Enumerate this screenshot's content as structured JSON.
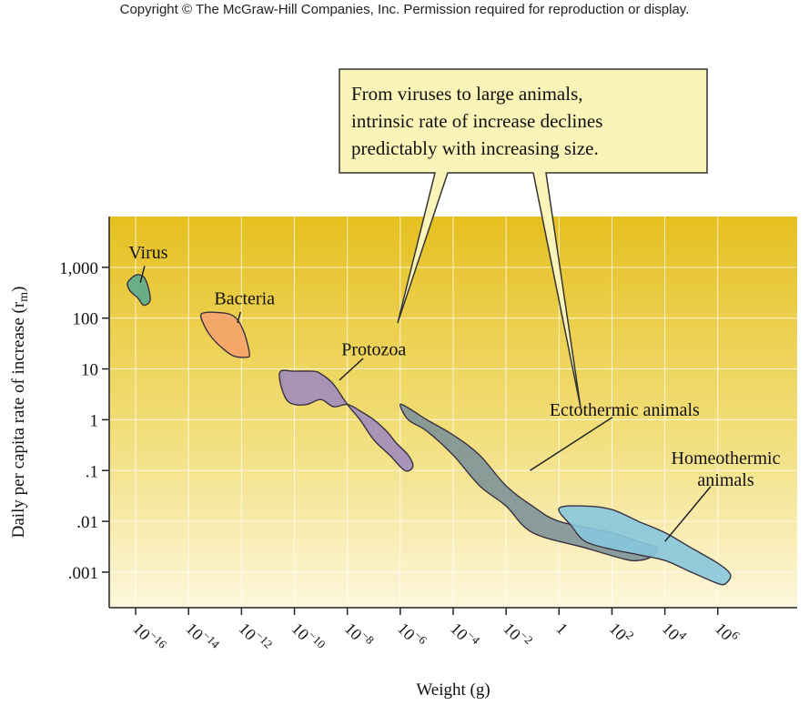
{
  "header": {
    "copyright": "Copyright © The McGraw-Hill Companies, Inc. Permission required for reproduction or display."
  },
  "callout": {
    "lines": [
      "From viruses to large animals,",
      "intrinsic rate of increase declines",
      "predictably with increasing size."
    ]
  },
  "chart_data": {
    "type": "area",
    "xlabel": "Weight (g)",
    "ylabel": "Daily per capita rate of increase (r",
    "ylabel_subscript": "m",
    "ylabel_close": ")",
    "x_scale": "log",
    "y_scale": "log",
    "xlim": [
      1e-17,
      1000000000.0
    ],
    "ylim": [
      0.0002,
      10000
    ],
    "x_ticks": [
      {
        "value": 1e-16,
        "base": "10",
        "exp": "−16"
      },
      {
        "value": 1e-14,
        "base": "10",
        "exp": "−14"
      },
      {
        "value": 1e-12,
        "base": "10",
        "exp": "−12"
      },
      {
        "value": 1e-10,
        "base": "10",
        "exp": "−10"
      },
      {
        "value": 1e-08,
        "base": "10",
        "exp": "−8"
      },
      {
        "value": 1e-06,
        "base": "10",
        "exp": "−6"
      },
      {
        "value": 0.0001,
        "base": "10",
        "exp": "−4"
      },
      {
        "value": 0.01,
        "base": "10",
        "exp": "−2"
      },
      {
        "value": 1,
        "base": "1",
        "exp": ""
      },
      {
        "value": 100.0,
        "base": "10",
        "exp": "2"
      },
      {
        "value": 10000.0,
        "base": "10",
        "exp": "4"
      },
      {
        "value": 1000000.0,
        "base": "10",
        "exp": "6"
      }
    ],
    "y_ticks": [
      {
        "value": 1000,
        "label": "1,000"
      },
      {
        "value": 100,
        "label": "100"
      },
      {
        "value": 10,
        "label": "10"
      },
      {
        "value": 1,
        "label": "1"
      },
      {
        "value": 0.1,
        "label": ".1"
      },
      {
        "value": 0.01,
        "label": ".01"
      },
      {
        "value": 0.001,
        "label": ".001"
      }
    ],
    "grid": true,
    "series": [
      {
        "name": "Virus",
        "color": "#5bab8e",
        "label_at": [
          3e-16,
          2000
        ],
        "pointer_to": [
          1.5e-16,
          500
        ],
        "region": [
          [
            5e-17,
            500
          ],
          [
            1e-16,
            700
          ],
          [
            2e-16,
            650
          ],
          [
            3e-16,
            400
          ],
          [
            3.5e-16,
            220
          ],
          [
            2e-16,
            180
          ],
          [
            1.2e-16,
            250
          ],
          [
            6e-17,
            350
          ]
        ]
      },
      {
        "name": "Bacteria",
        "color": "#f5a36b",
        "label_at": [
          1.3e-12,
          250
        ],
        "pointer_to": [
          7e-13,
          80
        ],
        "region": [
          [
            3e-14,
            120
          ],
          [
            1e-13,
            130
          ],
          [
            5e-13,
            110
          ],
          [
            1.2e-12,
            55
          ],
          [
            2e-12,
            20
          ],
          [
            1.5e-12,
            17
          ],
          [
            5e-13,
            18
          ],
          [
            2e-13,
            25
          ],
          [
            8e-14,
            40
          ],
          [
            4e-14,
            70
          ]
        ]
      },
      {
        "name": "Protozoa",
        "color": "#a08cbd",
        "label_at": [
          1e-07,
          25
        ],
        "pointer_to": [
          5e-09,
          6
        ],
        "region": [
          [
            3e-11,
            9
          ],
          [
            1e-10,
            9
          ],
          [
            5e-10,
            9
          ],
          [
            1e-09,
            8
          ],
          [
            3e-09,
            5
          ],
          [
            1e-08,
            2
          ],
          [
            3e-08,
            1
          ],
          [
            1e-07,
            0.4
          ],
          [
            4e-07,
            0.2
          ],
          [
            1.5e-06,
            0.1
          ],
          [
            3e-06,
            0.12
          ],
          [
            2e-06,
            0.2
          ],
          [
            7e-07,
            0.35
          ],
          [
            3e-07,
            0.6
          ],
          [
            1e-07,
            1
          ],
          [
            3e-08,
            1.5
          ],
          [
            1e-08,
            2
          ],
          [
            3e-09,
            1.8
          ],
          [
            1e-09,
            2.5
          ],
          [
            3e-10,
            2
          ],
          [
            1e-10,
            2
          ],
          [
            5e-11,
            2.5
          ],
          [
            3e-11,
            5
          ]
        ]
      },
      {
        "name": "Ectothermic animals",
        "color": "#7d9398",
        "label_at": [
          300.0,
          1.6
        ],
        "pointer_to": [
          0.08,
          0.1
        ],
        "region": [
          [
            1e-06,
            2
          ],
          [
            3e-06,
            1.5
          ],
          [
            1e-05,
            1
          ],
          [
            0.0001,
            0.5
          ],
          [
            0.001,
            0.2
          ],
          [
            0.01,
            0.05
          ],
          [
            0.1,
            0.02
          ],
          [
            1,
            0.01
          ],
          [
            100.0,
            0.006
          ],
          [
            1000.0,
            0.004
          ],
          [
            5000.0,
            0.003
          ],
          [
            3000.0,
            0.002
          ],
          [
            1000.0,
            0.0017
          ],
          [
            300.0,
            0.0018
          ],
          [
            10.0,
            0.003
          ],
          [
            0.1,
            0.006
          ],
          [
            0.01,
            0.02
          ],
          [
            0.001,
            0.05
          ],
          [
            0.0001,
            0.2
          ],
          [
            1e-05,
            0.6
          ],
          [
            2e-06,
            1
          ]
        ]
      },
      {
        "name": "Homeothermic animals",
        "color": "#87c6dd",
        "label_lines": [
          "Homeothermic",
          "animals"
        ],
        "label_at": [
          2000000.0,
          0.11
        ],
        "pointer_to": [
          10000.0,
          0.004
        ],
        "region": [
          [
            1,
            0.018
          ],
          [
            10.0,
            0.02
          ],
          [
            100.0,
            0.017
          ],
          [
            1000.0,
            0.01
          ],
          [
            10000.0,
            0.006
          ],
          [
            100000.0,
            0.003
          ],
          [
            1000000.0,
            0.0015
          ],
          [
            3000000.0,
            0.0009
          ],
          [
            2000000.0,
            0.0006
          ],
          [
            1000000.0,
            0.0006
          ],
          [
            100000.0,
            0.001
          ],
          [
            10000.0,
            0.0017
          ],
          [
            1000.0,
            0.0022
          ],
          [
            100.0,
            0.0028
          ],
          [
            10.0,
            0.004
          ],
          [
            3,
            0.008
          ]
        ]
      }
    ]
  }
}
